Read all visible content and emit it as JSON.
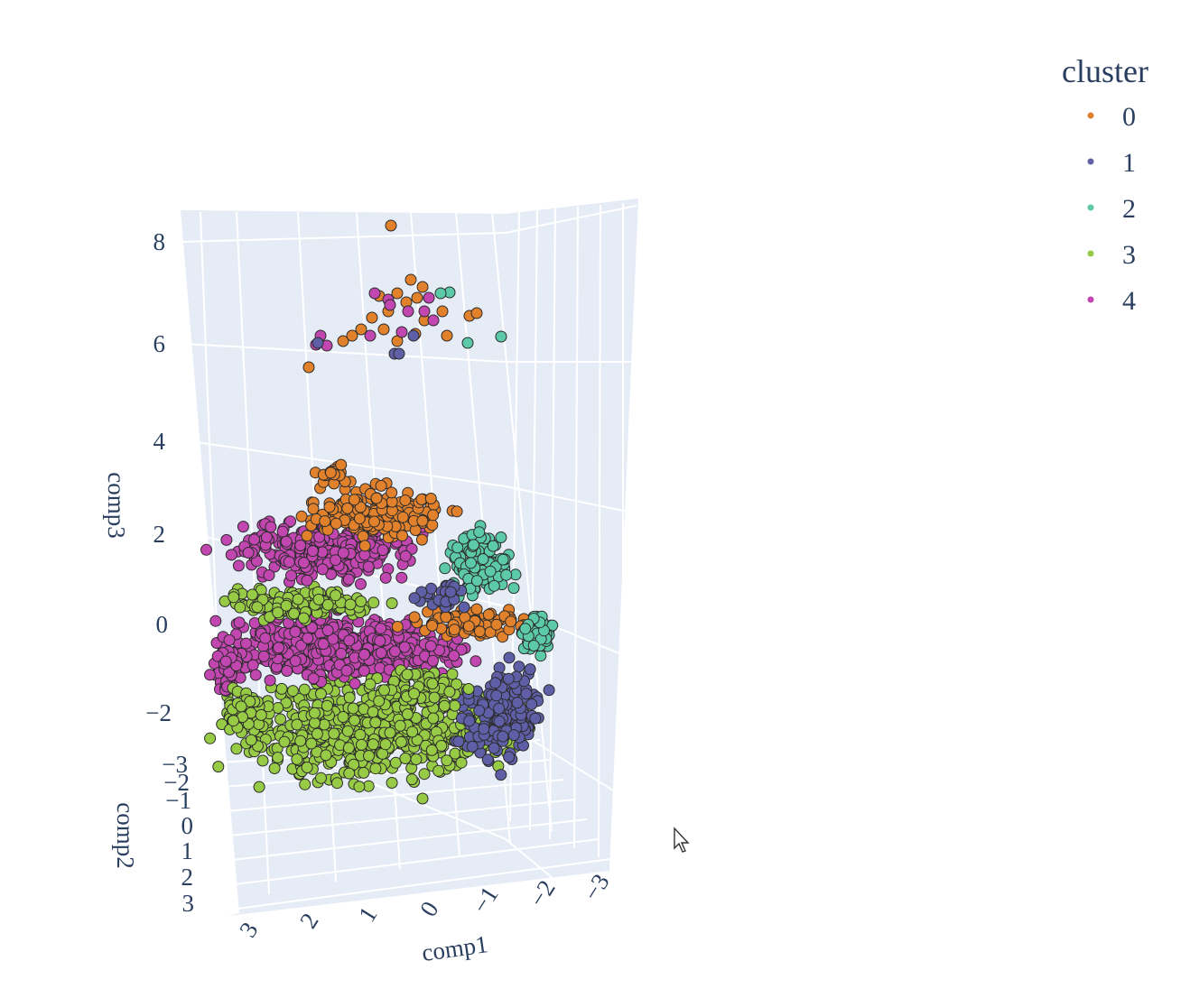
{
  "chart_data": {
    "type": "scatter",
    "variant": "3d-scatter",
    "xlabel": "comp1",
    "ylabel": "comp2",
    "zlabel": "comp3",
    "x_ticks": [
      "3",
      "2",
      "1",
      "0",
      "−1",
      "−2",
      "−3"
    ],
    "y_ticks": [
      "−3",
      "−2",
      "−1",
      "0",
      "1",
      "2",
      "3"
    ],
    "z_ticks": [
      "8",
      "6",
      "4",
      "2",
      "0",
      "−2"
    ],
    "legend": {
      "title": "cluster",
      "placement": "top-right",
      "entries": [
        {
          "name": "0",
          "color": "#e1812c"
        },
        {
          "name": "1",
          "color": "#5f5fa8"
        },
        {
          "name": "2",
          "color": "#5cc9a7"
        },
        {
          "name": "3",
          "color": "#98cb45"
        },
        {
          "name": "4",
          "color": "#c246b0"
        }
      ]
    },
    "grid": true,
    "background": "#e5ecf6",
    "series": [
      {
        "name": "0",
        "color": "#e1812c",
        "region": "top band at comp3 ≈ 2–3, plus outlier group at comp3 ≈ 6–7 and one point near 8"
      },
      {
        "name": "1",
        "color": "#5f5fa8",
        "region": "lower right, negative comp1"
      },
      {
        "name": "2",
        "color": "#5cc9a7",
        "region": "upper right, negative comp1, comp3 ≈ 0–2"
      },
      {
        "name": "3",
        "color": "#98cb45",
        "region": "bottom of cluster, comp3 ≈ −2 to −3, plus mid band near 0"
      },
      {
        "name": "4",
        "color": "#c246b0",
        "region": "two bands at comp3 ≈ 1.5 and ≈ −1"
      }
    ]
  }
}
